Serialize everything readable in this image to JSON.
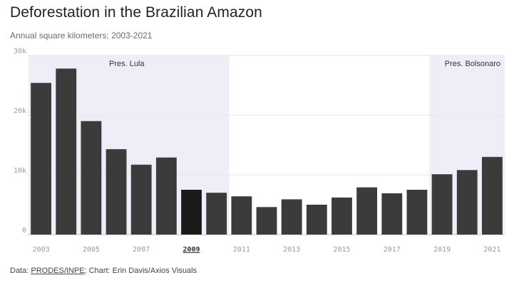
{
  "header": {
    "title": "Deforestation in the Brazilian Amazon",
    "subtitle": "Annual square kilometers; 2003-2021"
  },
  "footer": {
    "prefix": "Data: ",
    "source_link": "PRODES/INPE",
    "suffix": "; Chart: Erin Davis/Axios Visuals"
  },
  "colors": {
    "bar": "#3b3b3b",
    "highlight_bar": "#1a1a1a",
    "shade": "#efedf7",
    "grid": "#e6e6e6",
    "tick_text": "#9a9a9a"
  },
  "chart_data": {
    "type": "bar",
    "title": "Deforestation in the Brazilian Amazon",
    "subtitle": "Annual square kilometers; 2003-2021",
    "xlabel": "",
    "ylabel": "",
    "categories": [
      "2003",
      "2004",
      "2005",
      "2006",
      "2007",
      "2008",
      "2009",
      "2010",
      "2011",
      "2012",
      "2013",
      "2014",
      "2015",
      "2016",
      "2017",
      "2018",
      "2019",
      "2020",
      "2021"
    ],
    "values": [
      25400,
      27800,
      19000,
      14300,
      11700,
      12900,
      7500,
      7000,
      6400,
      4600,
      5900,
      5000,
      6200,
      7900,
      6900,
      7500,
      10100,
      10800,
      13000
    ],
    "highlight": "2009",
    "ylim": [
      0,
      30000
    ],
    "y_ticks": [
      {
        "value": 0,
        "label": "0"
      },
      {
        "value": 10000,
        "label": "10k"
      },
      {
        "value": 20000,
        "label": "20k"
      },
      {
        "value": 30000,
        "label": "30k"
      }
    ],
    "x_tick_labels": [
      "2003",
      "2005",
      "2007",
      "2009",
      "2011",
      "2013",
      "2015",
      "2017",
      "2019",
      "2021"
    ],
    "grid": true,
    "annotations": [
      {
        "label": "Pres. Lula",
        "start": "2003",
        "end": "2010"
      },
      {
        "label": "Pres. Bolsonaro",
        "start": "2019",
        "end": "2021"
      }
    ]
  }
}
